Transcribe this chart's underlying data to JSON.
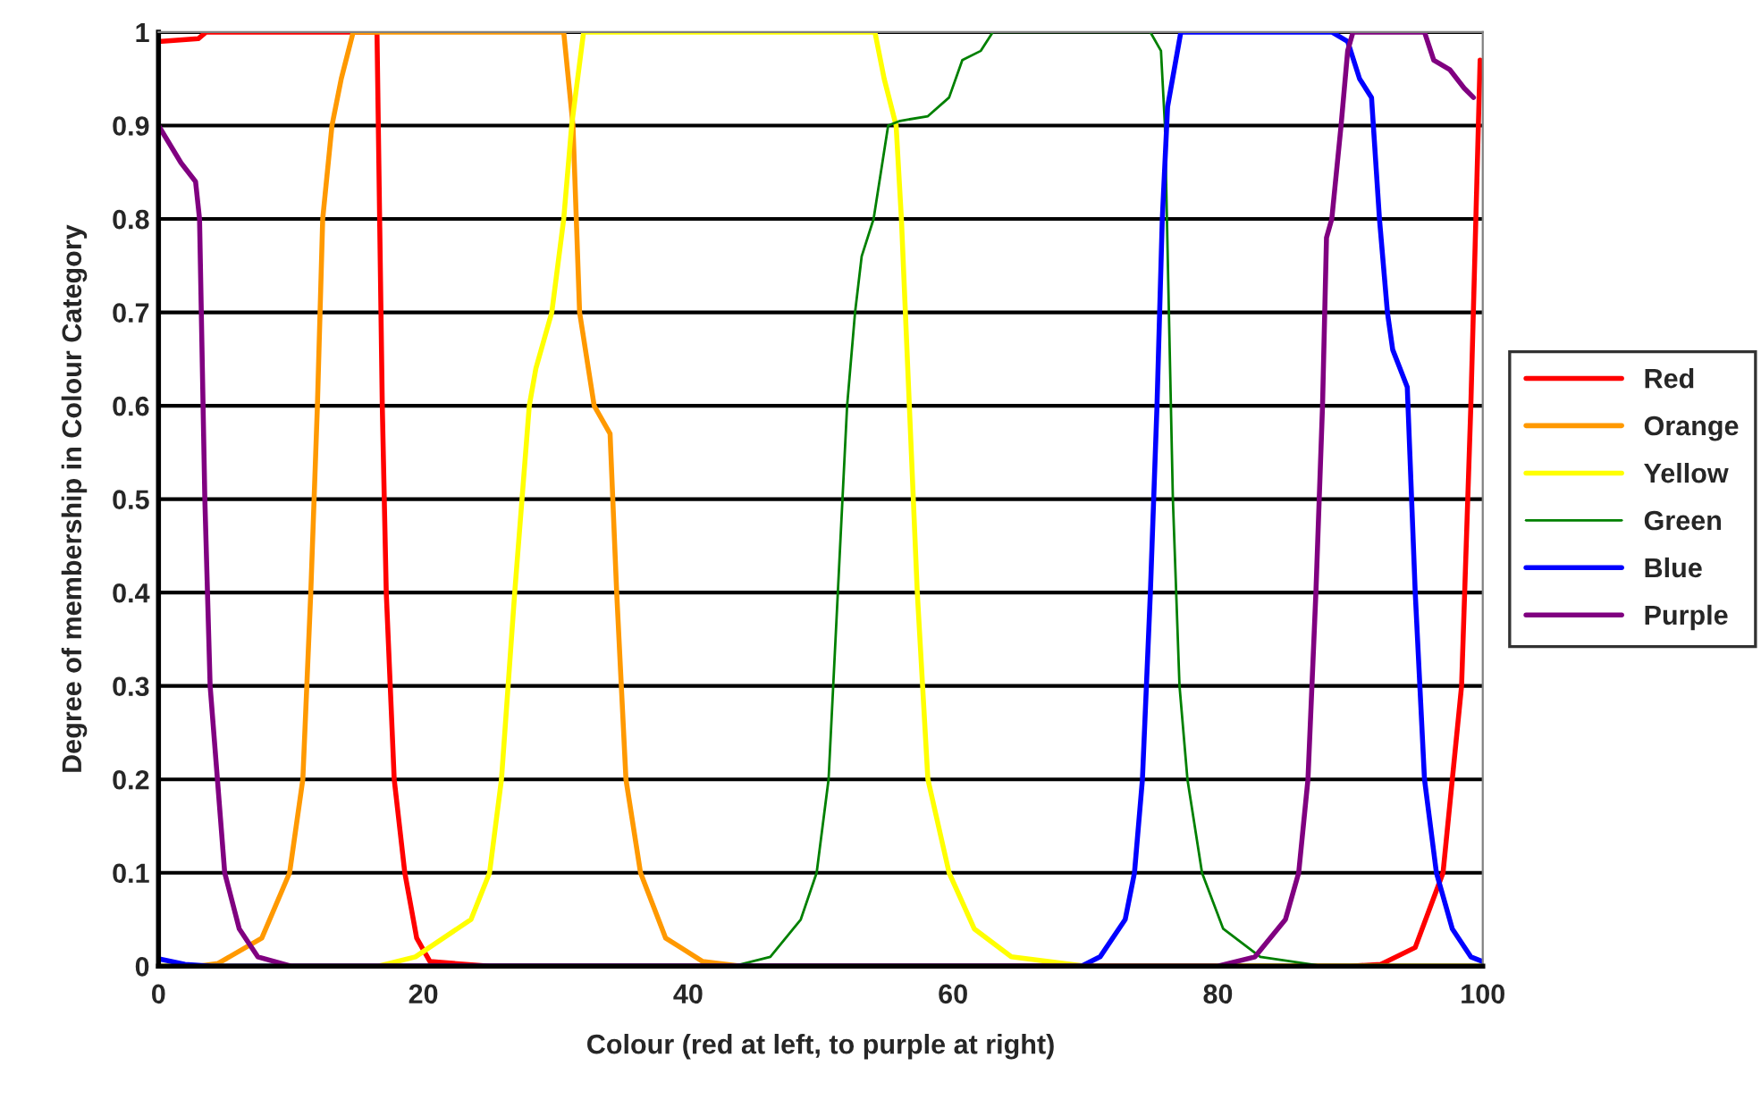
{
  "chart_data": {
    "type": "line",
    "xlabel": "Colour (red at left, to purple at right)",
    "ylabel": "Degree of membership in Colour Category",
    "xlim": [
      0,
      100
    ],
    "xticks": [
      0,
      20,
      40,
      60,
      80,
      100
    ],
    "ylim": [
      0,
      1
    ],
    "yticks": [
      0,
      0.1,
      0.2,
      0.3,
      0.4,
      0.5,
      0.6,
      0.7,
      0.8,
      0.9,
      1
    ],
    "grid": "y",
    "legend": "right",
    "marker": "none",
    "line_style": "solid",
    "series": [
      {
        "name": "Red",
        "color": "#ff0000",
        "x": [
          0,
          3,
          3.6,
          16.5,
          16.6,
          16.9,
          17.2,
          17.8,
          18.6,
          19.5,
          20.5,
          25,
          90,
          92.3,
          94.9,
          97,
          98.4,
          99.1,
          99.8
        ],
        "values": [
          0.99,
          0.993,
          1,
          1,
          0.9,
          0.6,
          0.4,
          0.2,
          0.1,
          0.03,
          0.005,
          0,
          0,
          0.002,
          0.02,
          0.1,
          0.3,
          0.6,
          0.97
        ]
      },
      {
        "name": "Orange",
        "color": "#ff9900",
        "x": [
          3,
          4.5,
          7.8,
          9.9,
          10.9,
          11.5,
          12.0,
          12.4,
          13.1,
          13.8,
          14.7,
          30.6,
          31.3,
          31.8,
          32.9,
          34.1,
          34.6,
          35.3,
          36.4,
          38.3,
          41.1,
          44,
          100
        ],
        "values": [
          0,
          0.003,
          0.03,
          0.1,
          0.2,
          0.4,
          0.6,
          0.8,
          0.9,
          0.95,
          1,
          1,
          0.9,
          0.7,
          0.6,
          0.57,
          0.4,
          0.2,
          0.1,
          0.03,
          0.005,
          0,
          0
        ]
      },
      {
        "name": "Yellow",
        "color": "#ffff00",
        "x": [
          0,
          16.6,
          19.4,
          23.6,
          25.0,
          25.9,
          26.9,
          28.0,
          28.5,
          29.7,
          30.6,
          31.2,
          32.1,
          54.1,
          54.8,
          55.7,
          56.1,
          56.7,
          57.3,
          58.1,
          59.7,
          61.6,
          64.4,
          70,
          100
        ],
        "values": [
          0,
          0,
          0.01,
          0.05,
          0.1,
          0.2,
          0.4,
          0.6,
          0.64,
          0.7,
          0.8,
          0.9,
          1,
          1,
          0.95,
          0.9,
          0.8,
          0.6,
          0.4,
          0.2,
          0.1,
          0.04,
          0.01,
          0,
          0
        ]
      },
      {
        "name": "Green",
        "color": "#008000",
        "x": [
          0,
          43.4,
          46.2,
          48.5,
          49.7,
          50.6,
          51.3,
          52.0,
          52.6,
          53.1,
          54.0,
          55.1,
          56.0,
          58.1,
          59.7,
          60.7,
          62.1,
          63.0,
          74.9,
          75.7,
          76.0,
          76.3,
          76.6,
          77.1,
          77.7,
          78.8,
          80.4,
          83.2,
          88,
          100
        ],
        "values": [
          0,
          0,
          0.01,
          0.05,
          0.1,
          0.2,
          0.4,
          0.6,
          0.7,
          0.76,
          0.8,
          0.9,
          0.905,
          0.91,
          0.93,
          0.97,
          0.98,
          1,
          1,
          0.98,
          0.9,
          0.7,
          0.5,
          0.3,
          0.2,
          0.1,
          0.04,
          0.01,
          0,
          0
        ]
      },
      {
        "name": "Blue",
        "color": "#0000ff",
        "x": [
          0,
          2,
          4,
          69.7,
          71.1,
          73.0,
          73.7,
          74.3,
          74.9,
          75.4,
          75.8,
          76.2,
          76.7,
          77.2,
          88.6,
          89.8,
          90.7,
          91.6,
          92.2,
          92.8,
          93.2,
          94.3,
          94.9,
          95.6,
          96.5,
          97.7,
          99.1,
          100
        ],
        "values": [
          0.008,
          0.002,
          0,
          0,
          0.01,
          0.05,
          0.1,
          0.2,
          0.4,
          0.6,
          0.8,
          0.92,
          0.96,
          1,
          1,
          0.99,
          0.95,
          0.93,
          0.8,
          0.7,
          0.66,
          0.62,
          0.4,
          0.2,
          0.1,
          0.04,
          0.01,
          0.005
        ]
      },
      {
        "name": "Purple",
        "color": "#800080",
        "x": [
          0,
          1.7,
          2.8,
          3.1,
          3.5,
          3.9,
          5.0,
          6.1,
          7.5,
          10,
          80,
          82.8,
          85.1,
          86.1,
          86.8,
          87.4,
          87.9,
          88.2,
          88.6,
          89.3,
          89.8,
          90.2,
          95.6,
          96.3,
          97.5,
          98.6,
          99.3
        ],
        "values": [
          0.9,
          0.86,
          0.84,
          0.8,
          0.5,
          0.3,
          0.1,
          0.04,
          0.01,
          0,
          0,
          0.01,
          0.05,
          0.1,
          0.2,
          0.4,
          0.6,
          0.78,
          0.8,
          0.9,
          0.98,
          1,
          1,
          0.97,
          0.96,
          0.94,
          0.93
        ]
      }
    ]
  }
}
